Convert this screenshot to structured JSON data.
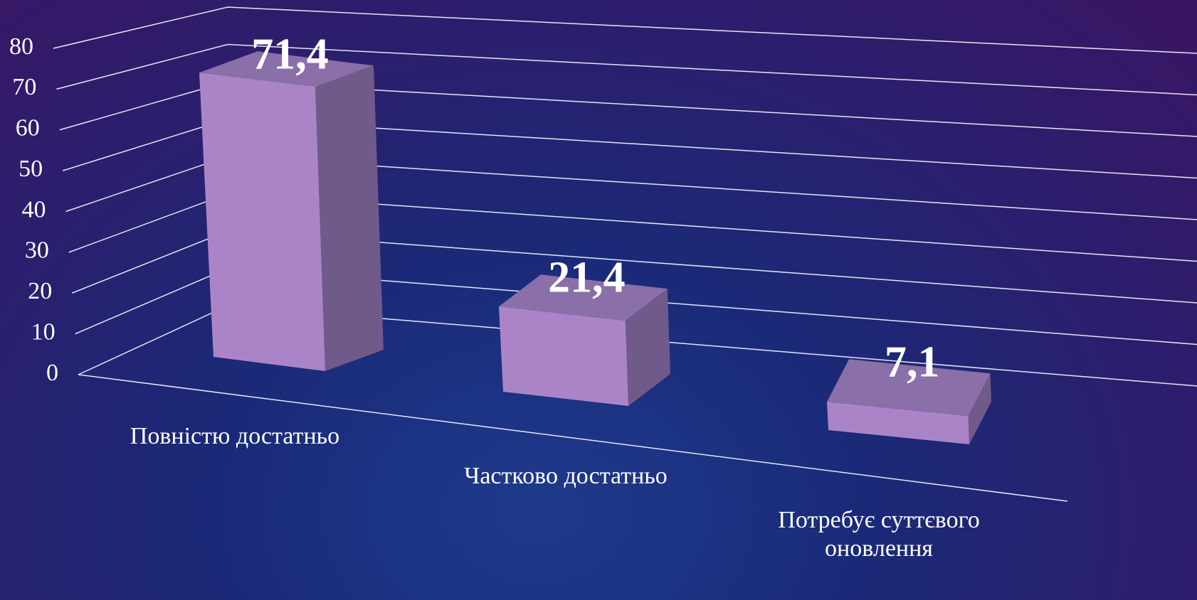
{
  "chart_data": {
    "type": "bar3d",
    "categories": [
      "Повністю достатньо",
      "Частково достатньо",
      "Потребує суттєвого оновлення"
    ],
    "values": [
      71.4,
      21.4,
      7.1
    ],
    "value_labels": [
      "71,4",
      "21,4",
      "7,1"
    ],
    "color": "#ab84c8",
    "ylim": [
      0,
      80
    ],
    "yticks": [
      0,
      10,
      20,
      30,
      40,
      50,
      60,
      70,
      80
    ],
    "grid": true
  }
}
